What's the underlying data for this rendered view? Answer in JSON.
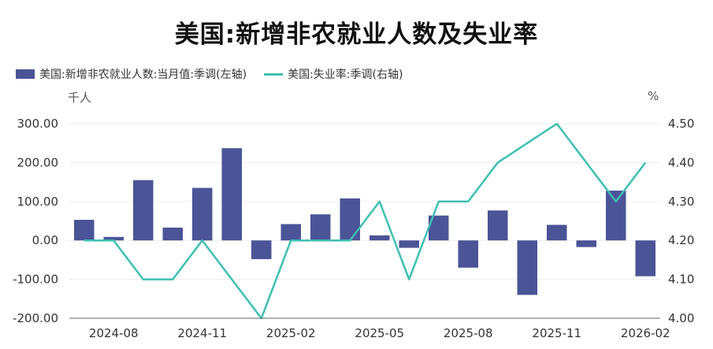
{
  "chart_data": {
    "type": "bar+line",
    "title": "美国:新增非农就业人数及失业率",
    "left_unit": "千人",
    "right_unit": "%",
    "x": [
      "2024-07",
      "2024-08",
      "2024-09",
      "2024-10",
      "2024-11",
      "2024-12",
      "2025-01",
      "2025-02",
      "2025-03",
      "2025-04",
      "2025-05",
      "2025-06",
      "2025-07",
      "2025-08",
      "2025-09",
      "2025-10",
      "2025-11",
      "2025-12",
      "2026-01",
      "2026-02"
    ],
    "x_tick_labels": [
      "2024-08",
      "2024-11",
      "2025-02",
      "2025-05",
      "2025-08",
      "2025-11",
      "2026-02"
    ],
    "x_tick_positions": [
      "2024-08",
      "2024-11",
      "2025-02",
      "2025-05",
      "2025-08",
      "2025-11",
      "2026-02"
    ],
    "series": [
      {
        "name": "美国:新增非农就业人数:当月值:季调(左轴)",
        "type": "bar",
        "axis": "left",
        "color": "#4a5497",
        "values": [
          53,
          9,
          155,
          33,
          135,
          237,
          -48,
          42,
          67,
          108,
          13,
          -19,
          64,
          -70,
          77,
          -140,
          40,
          -17,
          128,
          -92
        ]
      },
      {
        "name": "美国:失业率:季调(右轴)",
        "type": "line",
        "axis": "right",
        "color": "#3fbfb3",
        "values": [
          4.2,
          4.2,
          4.1,
          4.1,
          4.2,
          4.1,
          4.0,
          4.2,
          4.2,
          4.2,
          4.3,
          4.1,
          4.3,
          4.3,
          4.4,
          4.45,
          4.5,
          4.4,
          4.3,
          4.4
        ]
      }
    ],
    "left_axis": {
      "min": -200,
      "max": 300,
      "ticks": [
        -200,
        -100,
        0,
        100,
        200,
        300
      ],
      "tick_labels": [
        "-200.00",
        "-100.00",
        "0.00",
        "100.00",
        "200.00",
        "300.00"
      ]
    },
    "right_axis": {
      "min": 4.0,
      "max": 4.5,
      "ticks": [
        4.0,
        4.1,
        4.2,
        4.3,
        4.4,
        4.5
      ],
      "tick_labels": [
        "4.00",
        "4.10",
        "4.20",
        "4.30",
        "4.40",
        "4.50"
      ]
    },
    "grid": true,
    "legend_position": "top-left"
  }
}
